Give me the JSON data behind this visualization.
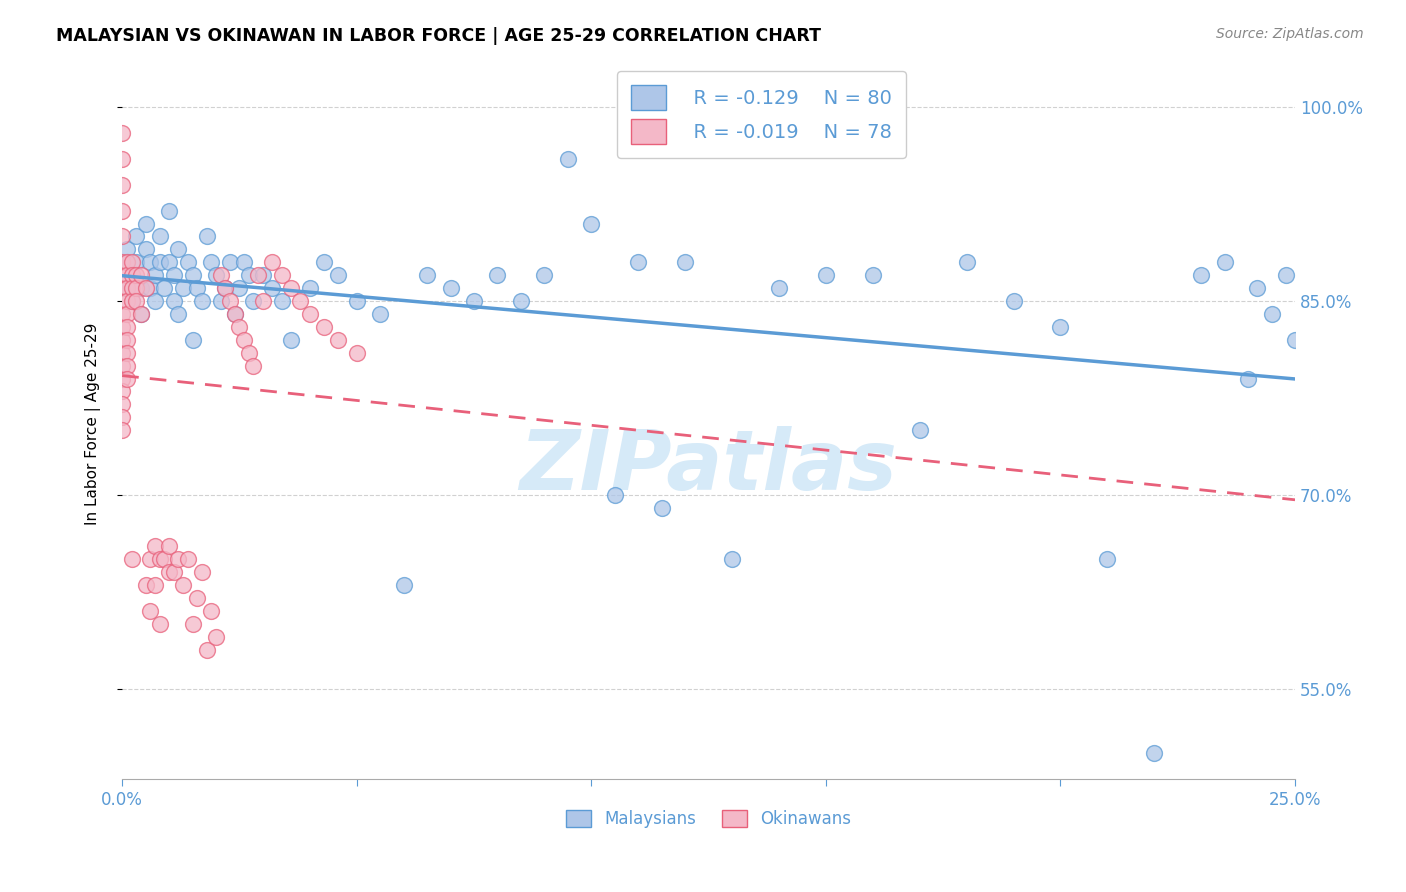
{
  "title": "MALAYSIAN VS OKINAWAN IN LABOR FORCE | AGE 25-29 CORRELATION CHART",
  "source": "Source: ZipAtlas.com",
  "ylabel": "In Labor Force | Age 25-29",
  "xlim": [
    0.0,
    0.25
  ],
  "ylim": [
    0.48,
    1.03
  ],
  "x_ticks": [
    0.0,
    0.05,
    0.1,
    0.15,
    0.2,
    0.25
  ],
  "x_tick_labels": [
    "0.0%",
    "",
    "",
    "",
    "",
    "25.0%"
  ],
  "y_ticks": [
    0.55,
    0.7,
    0.85,
    1.0
  ],
  "y_tick_labels": [
    "55.0%",
    "70.0%",
    "85.0%",
    "100.0%"
  ],
  "legend_r_blue": "R = -0.129",
  "legend_n_blue": "N = 80",
  "legend_r_pink": "R = -0.019",
  "legend_n_pink": "N = 78",
  "blue_fill": "#aec6e8",
  "blue_edge": "#5b9bd5",
  "pink_fill": "#f4b8c8",
  "pink_edge": "#e8607a",
  "trend_blue_color": "#5b9bd5",
  "trend_pink_color": "#e8607a",
  "watermark": "ZIPatlas",
  "watermark_color": "#d6eaf8",
  "blue_scatter_x": [
    0.001,
    0.001,
    0.001,
    0.002,
    0.002,
    0.003,
    0.003,
    0.004,
    0.004,
    0.005,
    0.005,
    0.006,
    0.006,
    0.007,
    0.007,
    0.008,
    0.008,
    0.009,
    0.01,
    0.01,
    0.011,
    0.011,
    0.012,
    0.012,
    0.013,
    0.014,
    0.015,
    0.015,
    0.016,
    0.017,
    0.018,
    0.019,
    0.02,
    0.021,
    0.022,
    0.023,
    0.024,
    0.025,
    0.026,
    0.027,
    0.028,
    0.03,
    0.032,
    0.034,
    0.036,
    0.04,
    0.043,
    0.046,
    0.05,
    0.055,
    0.06,
    0.065,
    0.07,
    0.075,
    0.08,
    0.085,
    0.09,
    0.095,
    0.1,
    0.105,
    0.11,
    0.115,
    0.12,
    0.13,
    0.14,
    0.15,
    0.16,
    0.17,
    0.18,
    0.19,
    0.2,
    0.21,
    0.22,
    0.23,
    0.235,
    0.24,
    0.242,
    0.245,
    0.248,
    0.25
  ],
  "blue_scatter_y": [
    0.88,
    0.86,
    0.89,
    0.87,
    0.85,
    0.9,
    0.88,
    0.86,
    0.84,
    0.91,
    0.89,
    0.88,
    0.86,
    0.87,
    0.85,
    0.9,
    0.88,
    0.86,
    0.92,
    0.88,
    0.87,
    0.85,
    0.89,
    0.84,
    0.86,
    0.88,
    0.82,
    0.87,
    0.86,
    0.85,
    0.9,
    0.88,
    0.87,
    0.85,
    0.86,
    0.88,
    0.84,
    0.86,
    0.88,
    0.87,
    0.85,
    0.87,
    0.86,
    0.85,
    0.82,
    0.86,
    0.88,
    0.87,
    0.85,
    0.84,
    0.63,
    0.87,
    0.86,
    0.85,
    0.87,
    0.85,
    0.87,
    0.96,
    0.91,
    0.7,
    0.88,
    0.69,
    0.88,
    0.65,
    0.86,
    0.87,
    0.87,
    0.75,
    0.88,
    0.85,
    0.83,
    0.65,
    0.5,
    0.87,
    0.88,
    0.79,
    0.86,
    0.84,
    0.87,
    0.82
  ],
  "pink_scatter_x": [
    0.0,
    0.0,
    0.0,
    0.0,
    0.0,
    0.0,
    0.0,
    0.0,
    0.0,
    0.0,
    0.0,
    0.0,
    0.0,
    0.0,
    0.0,
    0.0,
    0.0,
    0.0,
    0.0,
    0.001,
    0.001,
    0.001,
    0.001,
    0.001,
    0.001,
    0.001,
    0.001,
    0.001,
    0.001,
    0.002,
    0.002,
    0.002,
    0.002,
    0.002,
    0.003,
    0.003,
    0.003,
    0.004,
    0.004,
    0.005,
    0.005,
    0.006,
    0.006,
    0.007,
    0.007,
    0.008,
    0.008,
    0.009,
    0.01,
    0.01,
    0.011,
    0.012,
    0.013,
    0.014,
    0.015,
    0.016,
    0.017,
    0.018,
    0.019,
    0.02,
    0.021,
    0.022,
    0.023,
    0.024,
    0.025,
    0.026,
    0.027,
    0.028,
    0.029,
    0.03,
    0.032,
    0.034,
    0.036,
    0.038,
    0.04,
    0.043,
    0.046,
    0.05
  ],
  "pink_scatter_y": [
    0.98,
    0.96,
    0.94,
    0.92,
    0.9,
    0.88,
    0.87,
    0.86,
    0.85,
    0.84,
    0.83,
    0.82,
    0.81,
    0.8,
    0.79,
    0.78,
    0.77,
    0.76,
    0.75,
    0.88,
    0.87,
    0.86,
    0.85,
    0.84,
    0.83,
    0.82,
    0.81,
    0.8,
    0.79,
    0.88,
    0.87,
    0.86,
    0.85,
    0.65,
    0.87,
    0.86,
    0.85,
    0.87,
    0.84,
    0.86,
    0.63,
    0.65,
    0.61,
    0.66,
    0.63,
    0.65,
    0.6,
    0.65,
    0.64,
    0.66,
    0.64,
    0.65,
    0.63,
    0.65,
    0.6,
    0.62,
    0.64,
    0.58,
    0.61,
    0.59,
    0.87,
    0.86,
    0.85,
    0.84,
    0.83,
    0.82,
    0.81,
    0.8,
    0.87,
    0.85,
    0.88,
    0.87,
    0.86,
    0.85,
    0.84,
    0.83,
    0.82,
    0.81
  ]
}
